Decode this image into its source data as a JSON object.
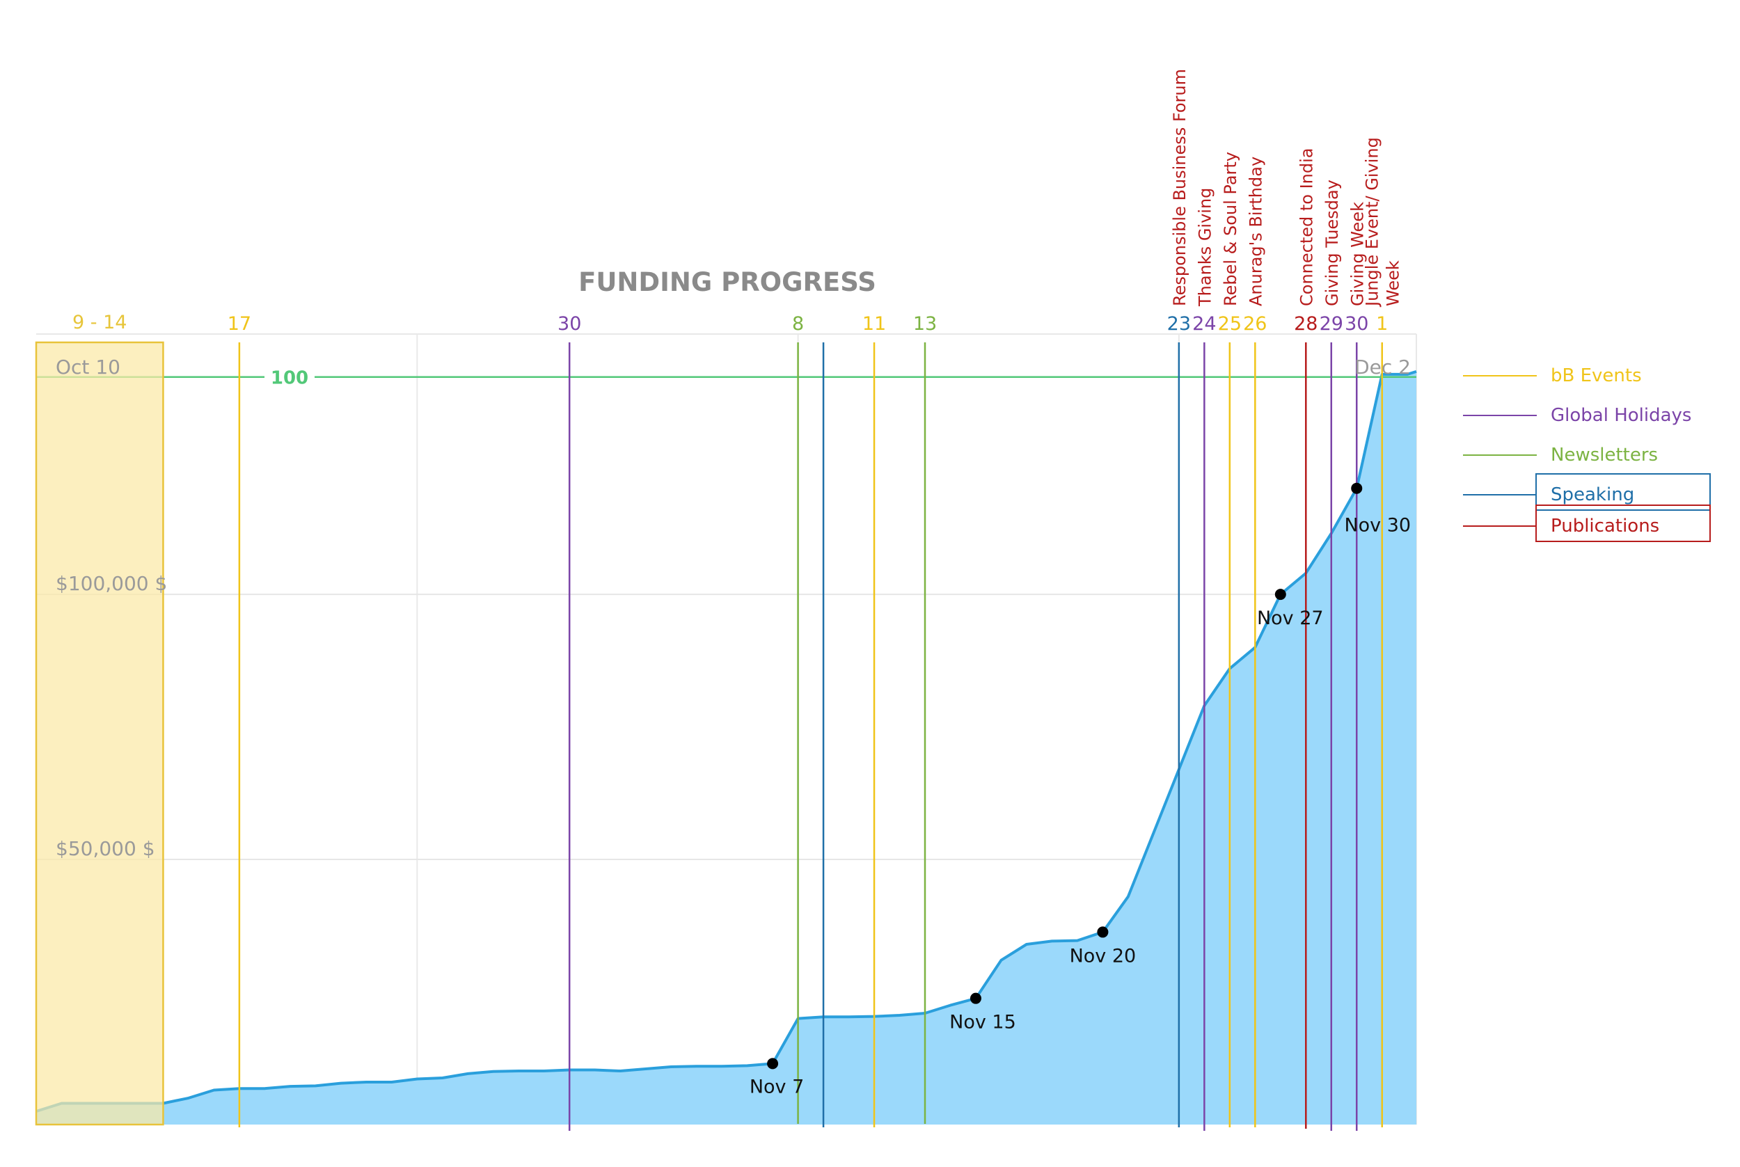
{
  "chart_data": {
    "type": "area",
    "title": "FUNDING PROGRESS",
    "x_range": [
      "Oct 10",
      "Dec 2"
    ],
    "y_ticks": [
      {
        "value": 50000,
        "label": "$50,000 $"
      },
      {
        "value": 100000,
        "label": "$100,000 $"
      }
    ],
    "y_range": [
      0,
      147000
    ],
    "grid": true,
    "goal_line": {
      "label": "100",
      "value": 141000,
      "color": "#52c878"
    },
    "range_labels": {
      "start": "Oct 10",
      "end": "Dec 2"
    },
    "highlight_period": {
      "label": "9 - 14",
      "from": "Oct 9",
      "to": "Oct 14",
      "color": "#e7c53a"
    },
    "series": [
      {
        "points": [
          [
            "Oct 9",
            2500
          ],
          [
            "Oct 10",
            4000
          ],
          [
            "Oct 11",
            4000
          ],
          [
            "Oct 12",
            4000
          ],
          [
            "Oct 13",
            4000
          ],
          [
            "Oct 14",
            4000
          ],
          [
            "Oct 15",
            5000
          ],
          [
            "Oct 16",
            6500
          ],
          [
            "Oct 17",
            6800
          ],
          [
            "Oct 18",
            6800
          ],
          [
            "Oct 19",
            7200
          ],
          [
            "Oct 20",
            7300
          ],
          [
            "Oct 21",
            7800
          ],
          [
            "Oct 22",
            8000
          ],
          [
            "Oct 23",
            8000
          ],
          [
            "Oct 24",
            8600
          ],
          [
            "Oct 25",
            8800
          ],
          [
            "Oct 26",
            9600
          ],
          [
            "Oct 27",
            10000
          ],
          [
            "Oct 28",
            10100
          ],
          [
            "Oct 29",
            10100
          ],
          [
            "Oct 30",
            10300
          ],
          [
            "Oct 31",
            10300
          ],
          [
            "Nov 1",
            10100
          ],
          [
            "Nov 2",
            10500
          ],
          [
            "Nov 3",
            10900
          ],
          [
            "Nov 4",
            11000
          ],
          [
            "Nov 5",
            11000
          ],
          [
            "Nov 6",
            11100
          ],
          [
            "Nov 7",
            11500
          ],
          [
            "Nov 8",
            20000
          ],
          [
            "Nov 9",
            20300
          ],
          [
            "Nov 10",
            20300
          ],
          [
            "Nov 11",
            20400
          ],
          [
            "Nov 12",
            20600
          ],
          [
            "Nov 13",
            21000
          ],
          [
            "Nov 14",
            22500
          ],
          [
            "Nov 15",
            23800
          ],
          [
            "Nov 16",
            31000
          ],
          [
            "Nov 17",
            34000
          ],
          [
            "Nov 18",
            34600
          ],
          [
            "Nov 19",
            34700
          ],
          [
            "Nov 20",
            36300
          ],
          [
            "Nov 21",
            43000
          ],
          [
            "Nov 22",
            55000
          ],
          [
            "Nov 23",
            67000
          ],
          [
            "Nov 24",
            79000
          ],
          [
            "Nov 25",
            86000
          ],
          [
            "Nov 26",
            90000
          ],
          [
            "Nov 27",
            100000
          ],
          [
            "Nov 28",
            104000
          ],
          [
            "Nov 29",
            111500
          ],
          [
            "Nov 30",
            120000
          ],
          [
            "Dec 1",
            141500
          ],
          [
            "Dec 2",
            141500
          ]
        ],
        "line_color": "#2a9fdc",
        "fill_color": "#9bd9fb"
      }
    ],
    "milestones": [
      {
        "label": "Nov 7",
        "x": "Nov 7",
        "y": 11500
      },
      {
        "label": "Nov 15",
        "x": "Nov 15",
        "y": 23800
      },
      {
        "label": "Nov 20",
        "x": "Nov 20",
        "y": 36300
      },
      {
        "label": "Nov 27",
        "x": "Nov 27",
        "y": 100000
      },
      {
        "label": "Nov 30",
        "x": "Nov 30",
        "y": 120000
      }
    ],
    "events": [
      {
        "day": "17",
        "x": "Oct 17",
        "category": "bB Events"
      },
      {
        "day": "30",
        "x": "Oct 30",
        "category": "Global Holidays"
      },
      {
        "day": "8",
        "x": "Nov 8",
        "category": "Newsletters"
      },
      {
        "day": "",
        "x": "Nov 9",
        "category": "Speaking"
      },
      {
        "day": "11",
        "x": "Nov 11",
        "category": "bB Events"
      },
      {
        "day": "13",
        "x": "Nov 13",
        "category": "Newsletters"
      },
      {
        "day": "23",
        "x": "Nov 23",
        "category": "Speaking",
        "name": "Responsible Business Forum"
      },
      {
        "day": "24",
        "x": "Nov 24",
        "category": "Global Holidays",
        "name": "Thanks Giving"
      },
      {
        "day": "25",
        "x": "Nov 25",
        "category": "bB Events",
        "name": "Rebel & Soul Party"
      },
      {
        "day": "26",
        "x": "Nov 26",
        "category": "bB Events",
        "name": "Anurag's Birthday"
      },
      {
        "day": "28",
        "x": "Nov 28",
        "category": "Publications",
        "name": "Connected to India"
      },
      {
        "day": "29",
        "x": "Nov 29",
        "category": "Global Holidays",
        "name": "Giving Tuesday"
      },
      {
        "day": "30",
        "x": "Nov 30",
        "category": "Global Holidays",
        "name": "Giving Week"
      },
      {
        "day": "1",
        "x": "Dec 1",
        "category": "bB Events",
        "name": [
          "Jungle Event/ Giving",
          "Week"
        ]
      }
    ],
    "legend": {
      "position": "right",
      "items": [
        {
          "label": "bB Events",
          "color": "#f0c419"
        },
        {
          "label": "Global Holidays",
          "color": "#7b44a8"
        },
        {
          "label": "Newsletters",
          "color": "#7cb342"
        },
        {
          "label": "Speaking",
          "color": "#1f6fa8",
          "boxed": true
        },
        {
          "label": "Publications",
          "color": "#b71c1c",
          "boxed": true
        }
      ]
    }
  }
}
